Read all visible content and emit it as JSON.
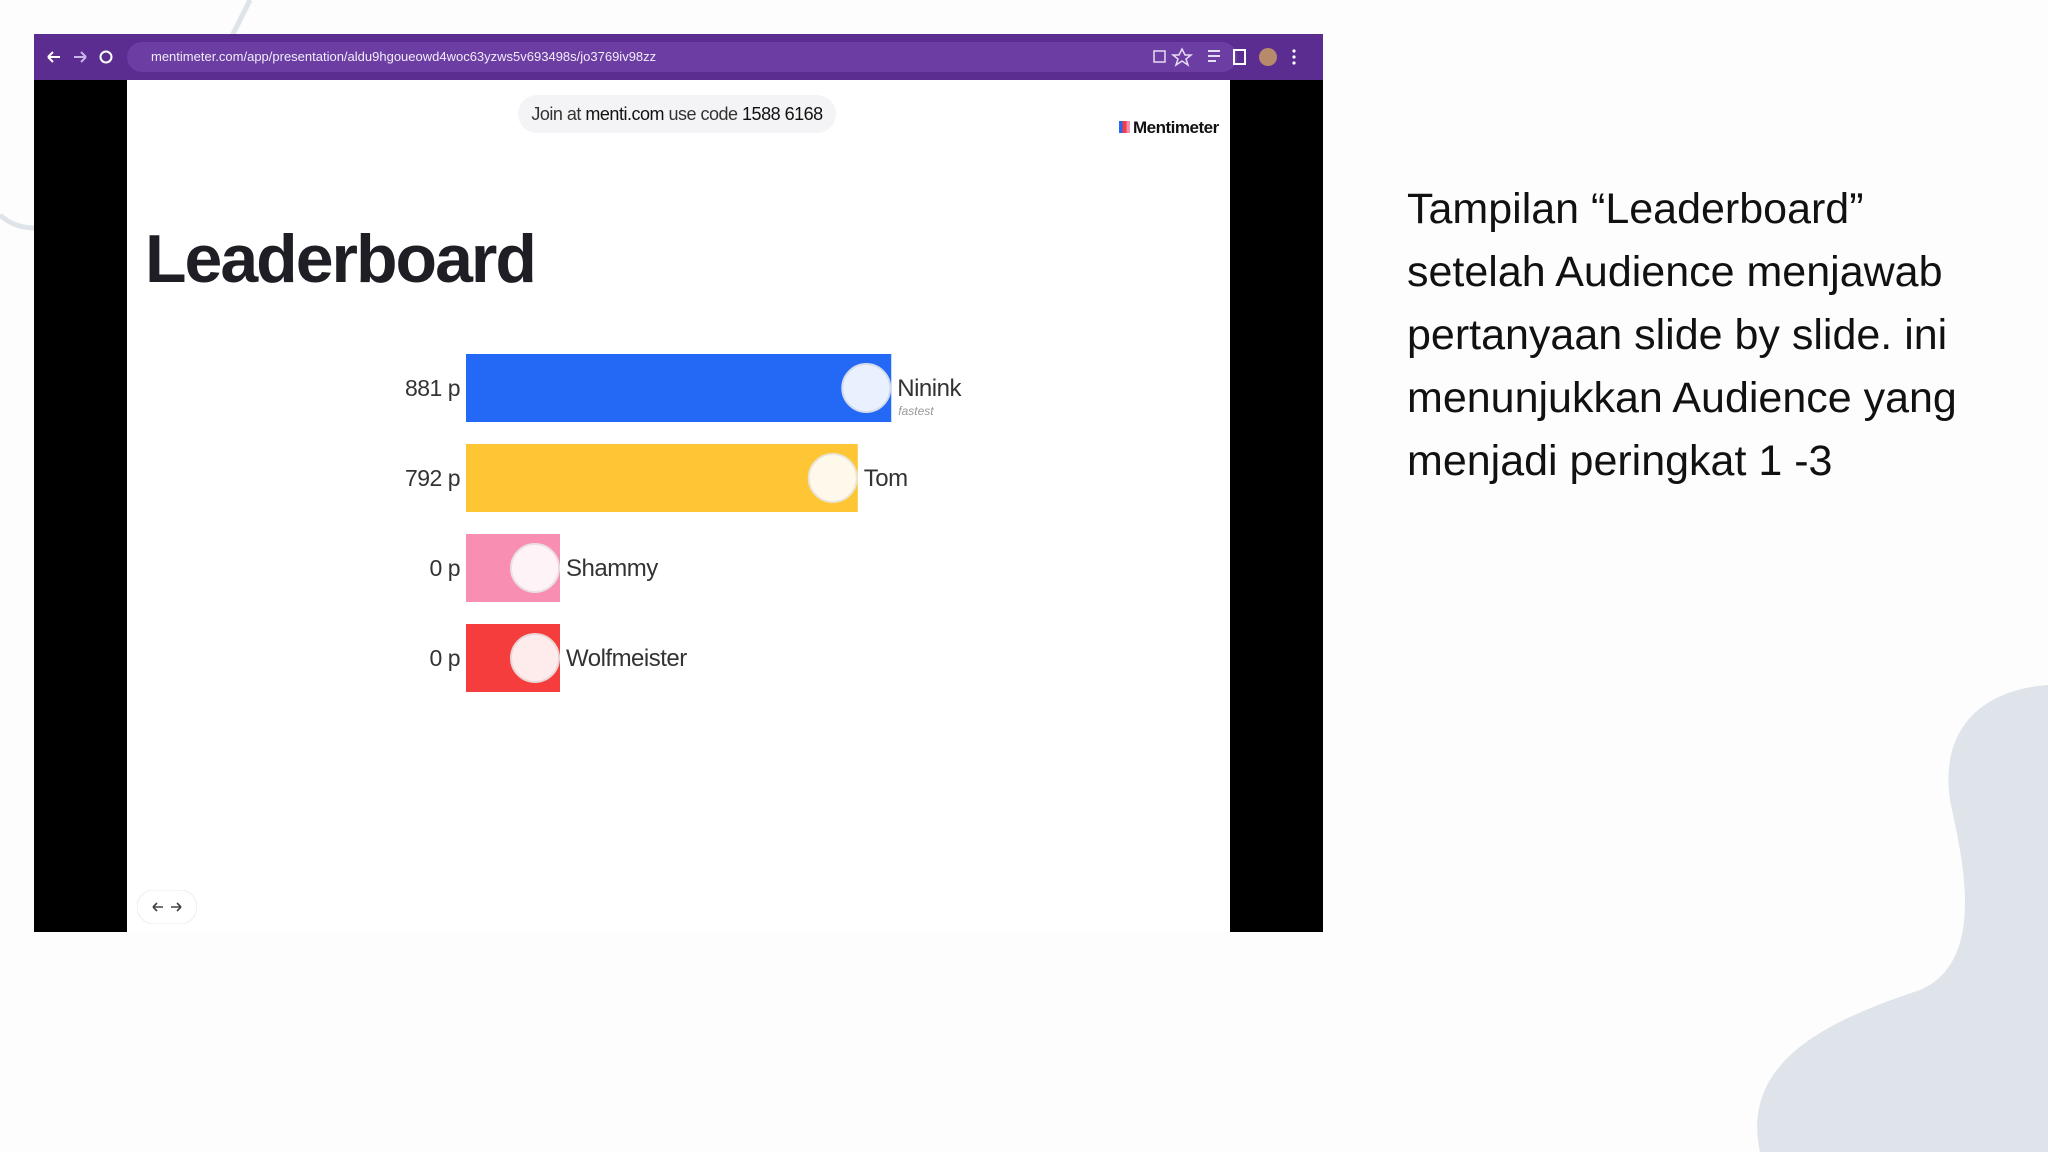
{
  "browser": {
    "url": "mentimeter.com/app/presentation/aldu9hgoueowd4woc63yzws5v693498s/jo3769iv98zz"
  },
  "slide": {
    "join": {
      "prefix": "Join at",
      "site": "menti.com",
      "code_label": "use code",
      "code": "1588 6168"
    },
    "brand": "Mentimeter",
    "title": "Leaderboard",
    "leaderboard": [
      {
        "name": "Ninink",
        "badge": "fastest",
        "score": {
          "value": 881,
          "label": "881 p"
        },
        "color": "#2369f6"
      },
      {
        "name": "Tom",
        "score": {
          "value": 792,
          "label": "792 p"
        },
        "color": "#fec635"
      },
      {
        "name": "Shammy",
        "score": {
          "value": 0,
          "label": "0 p"
        },
        "color": "#f88fb2"
      },
      {
        "name": "Wolfmeister",
        "score": {
          "value": 0,
          "label": "0 p"
        },
        "color": "#f53d3d"
      }
    ]
  },
  "caption": "Tampilan “Leaderboard” setelah Audience menjawab pertanyaan slide by slide. ini menunjukkan Audience yang menjadi peringkat 1 -3"
}
